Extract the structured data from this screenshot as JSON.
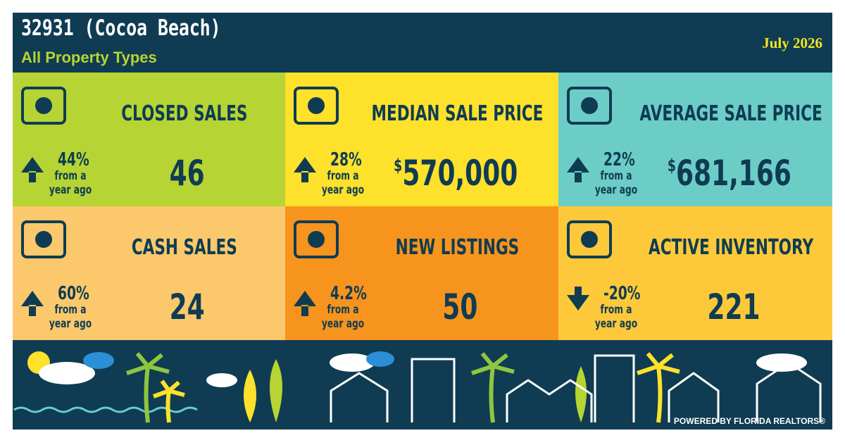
{
  "header": {
    "title": "32931 (Cocoa Beach)",
    "subtitle": "All Property Types",
    "date": "July 2026"
  },
  "tiles": [
    {
      "label": "CLOSED SALES",
      "value": "46",
      "change": "44%",
      "direction": "up",
      "note": [
        "from a",
        "year ago"
      ],
      "color": "#b6d433"
    },
    {
      "label": "MEDIAN SALE PRICE",
      "currency": "$",
      "value": "570,000",
      "change": "28%",
      "direction": "up",
      "note": [
        "from a",
        "year ago"
      ],
      "color": "#fde12b"
    },
    {
      "label": "AVERAGE SALE PRICE",
      "currency": "$",
      "value": "681,166",
      "change": "22%",
      "direction": "up",
      "note": [
        "from a",
        "year ago"
      ],
      "color": "#6ccdc7"
    },
    {
      "label": "CASH SALES",
      "value": "24",
      "change": "60%",
      "direction": "up",
      "note": [
        "from a",
        "year ago"
      ],
      "color": "#fbc86c"
    },
    {
      "label": "NEW LISTINGS",
      "value": "50",
      "change": "4.2%",
      "direction": "up",
      "note": [
        "from a",
        "year ago"
      ],
      "color": "#f7941d"
    },
    {
      "label": "ACTIVE INVENTORY",
      "value": "221",
      "change": "-20%",
      "direction": "down",
      "note": [
        "from a",
        "year ago"
      ],
      "color": "#fdc93a"
    }
  ],
  "footer": {
    "credit": "POWERED BY FLORIDA REALTORS®"
  }
}
